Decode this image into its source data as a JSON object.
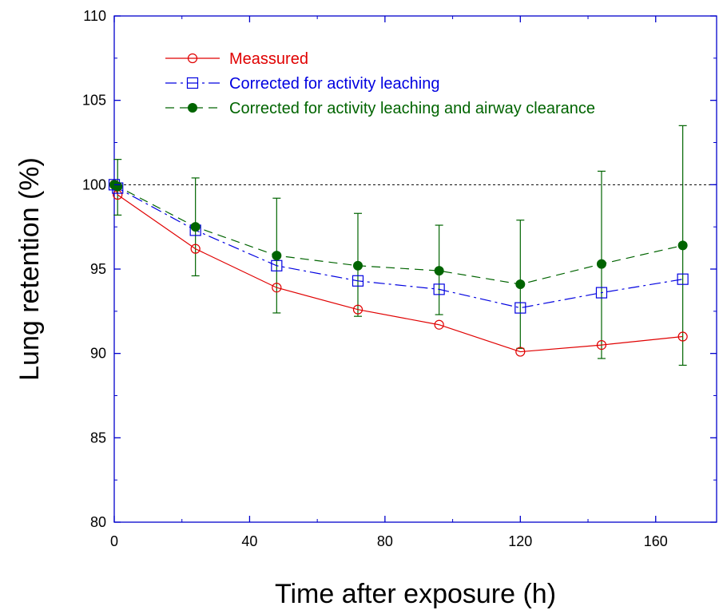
{
  "chart_data": {
    "type": "line",
    "xlabel": "Time after exposure (h)",
    "ylabel": "Lung retention (%)",
    "xlim": [
      0,
      178
    ],
    "ylim": [
      80,
      110
    ],
    "xticks": [
      0,
      40,
      80,
      120,
      160
    ],
    "yticks": [
      80,
      85,
      90,
      95,
      100,
      105,
      110
    ],
    "reference_line": {
      "y": 100,
      "style": "dotted"
    },
    "legend_position": "top-left",
    "series": [
      {
        "name": "Meassured",
        "color": "#e00000",
        "marker": "open-circle",
        "dash": "solid",
        "x": [
          0,
          1,
          24,
          48,
          72,
          96,
          120,
          144,
          168
        ],
        "y": [
          100,
          99.4,
          96.2,
          93.9,
          92.6,
          91.7,
          90.1,
          90.5,
          91.0
        ]
      },
      {
        "name": "Corrected for activity leaching",
        "color": "#0000e0",
        "marker": "open-square",
        "dash": "dash-dot",
        "x": [
          0,
          1,
          24,
          48,
          72,
          96,
          120,
          144,
          168
        ],
        "y": [
          100,
          99.8,
          97.3,
          95.2,
          94.3,
          93.8,
          92.7,
          93.6,
          94.4
        ]
      },
      {
        "name": "Corrected for activity leaching and airway clearance",
        "color": "#006400",
        "marker": "filled-circle",
        "dash": "dashed",
        "x": [
          0,
          1,
          24,
          48,
          72,
          96,
          120,
          144,
          168
        ],
        "y": [
          100,
          99.9,
          97.5,
          95.8,
          95.2,
          94.9,
          94.1,
          95.3,
          96.4
        ],
        "error_low": [
          100,
          98.2,
          94.6,
          92.4,
          92.2,
          92.3,
          90.3,
          89.7,
          89.3
        ],
        "error_high": [
          100,
          101.5,
          100.4,
          99.2,
          98.3,
          97.6,
          97.9,
          100.8,
          103.5
        ]
      }
    ]
  }
}
